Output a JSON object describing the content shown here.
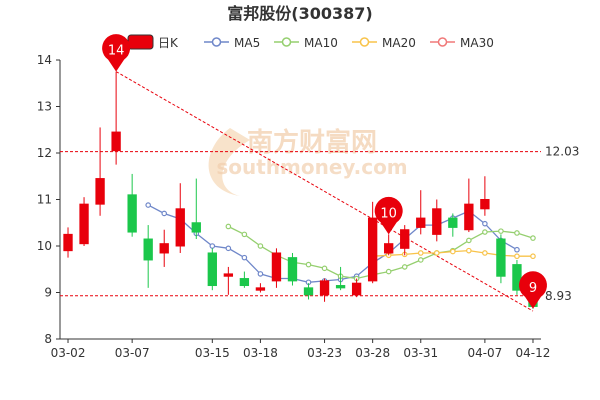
{
  "chart_data": {
    "type": "candlestick",
    "title": "富邦股份(300387)",
    "watermark": {
      "main": "南方财富网",
      "sub": "southmoney.com"
    },
    "legend": [
      {
        "name": "日K",
        "color": "#e8000b"
      },
      {
        "name": "MA5",
        "color": "#6f87c9"
      },
      {
        "name": "MA10",
        "color": "#95cf6f"
      },
      {
        "name": "MA20",
        "color": "#f8c34a"
      },
      {
        "name": "MA30",
        "color": "#f07878"
      }
    ],
    "colors": {
      "up": "#e8000b",
      "down": "#1bc74b",
      "ref_line": "#e8000b",
      "trend_line": "#e8000b",
      "pin": "#e8000b"
    },
    "ylim": [
      8,
      14
    ],
    "yticks": [
      8,
      9,
      10,
      11,
      12,
      13,
      14
    ],
    "xtick_labels": [
      {
        "index": 0,
        "label": "03-02"
      },
      {
        "index": 4,
        "label": "03-07"
      },
      {
        "index": 9,
        "label": "03-15"
      },
      {
        "index": 12,
        "label": "03-18"
      },
      {
        "index": 16,
        "label": "03-23"
      },
      {
        "index": 19,
        "label": "03-28"
      },
      {
        "index": 22,
        "label": "03-31"
      },
      {
        "index": 26,
        "label": "04-07"
      },
      {
        "index": 29,
        "label": "04-12"
      }
    ],
    "candles": [
      {
        "o": 9.9,
        "c": 10.25,
        "h": 10.4,
        "l": 9.75
      },
      {
        "o": 10.05,
        "c": 10.9,
        "h": 11.05,
        "l": 10.0
      },
      {
        "o": 10.9,
        "c": 11.45,
        "h": 12.55,
        "l": 10.65
      },
      {
        "o": 12.05,
        "c": 12.45,
        "h": 13.75,
        "l": 11.75
      },
      {
        "o": 11.1,
        "c": 10.3,
        "h": 11.55,
        "l": 10.2
      },
      {
        "o": 10.15,
        "c": 9.7,
        "h": 10.45,
        "l": 9.1
      },
      {
        "o": 9.85,
        "c": 10.05,
        "h": 10.35,
        "l": 9.55
      },
      {
        "o": 10.0,
        "c": 10.8,
        "h": 11.35,
        "l": 9.85
      },
      {
        "o": 10.5,
        "c": 10.3,
        "h": 11.45,
        "l": 10.15
      },
      {
        "o": 9.85,
        "c": 9.15,
        "h": 9.95,
        "l": 9.05
      },
      {
        "o": 9.35,
        "c": 9.4,
        "h": 9.55,
        "l": 8.95
      },
      {
        "o": 9.3,
        "c": 9.15,
        "h": 9.45,
        "l": 9.1
      },
      {
        "o": 9.05,
        "c": 9.1,
        "h": 9.2,
        "l": 9.0
      },
      {
        "o": 9.25,
        "c": 9.85,
        "h": 9.95,
        "l": 9.1
      },
      {
        "o": 9.75,
        "c": 9.25,
        "h": 9.85,
        "l": 9.15
      },
      {
        "o": 9.1,
        "c": 8.95,
        "h": 9.2,
        "l": 8.85
      },
      {
        "o": 8.95,
        "c": 9.25,
        "h": 9.3,
        "l": 8.8
      },
      {
        "o": 9.15,
        "c": 9.1,
        "h": 9.55,
        "l": 9.05
      },
      {
        "o": 8.95,
        "c": 9.2,
        "h": 9.3,
        "l": 8.9
      },
      {
        "o": 9.25,
        "c": 10.6,
        "h": 10.95,
        "l": 9.2
      },
      {
        "o": 9.85,
        "c": 10.05,
        "h": 10.25,
        "l": 9.8
      },
      {
        "o": 9.95,
        "c": 10.35,
        "h": 10.45,
        "l": 9.8
      },
      {
        "o": 10.4,
        "c": 10.6,
        "h": 11.2,
        "l": 10.25
      },
      {
        "o": 10.25,
        "c": 10.8,
        "h": 11.0,
        "l": 10.1
      },
      {
        "o": 10.6,
        "c": 10.4,
        "h": 10.7,
        "l": 10.2
      },
      {
        "o": 10.35,
        "c": 10.9,
        "h": 11.45,
        "l": 10.3
      },
      {
        "o": 10.8,
        "c": 11.0,
        "h": 11.5,
        "l": 10.65
      },
      {
        "o": 10.15,
        "c": 9.35,
        "h": 10.25,
        "l": 9.2
      },
      {
        "o": 9.6,
        "c": 9.05,
        "h": 9.7,
        "l": 8.95
      },
      {
        "o": 8.95,
        "c": 8.7,
        "h": 9.05,
        "l": 8.65
      }
    ],
    "series": [
      {
        "name": "MA5",
        "color": "#6f87c9",
        "start": 5,
        "values": [
          10.88,
          10.7,
          10.58,
          10.27,
          10.0,
          9.95,
          9.75,
          9.4,
          9.3,
          9.3,
          9.22,
          9.25,
          9.28,
          9.35,
          9.64,
          9.85,
          10.15,
          10.45,
          10.45,
          10.6,
          10.75,
          10.48,
          10.12,
          9.92
        ]
      },
      {
        "name": "MA10",
        "color": "#95cf6f",
        "start": 10,
        "values": [
          10.42,
          10.25,
          10.0,
          9.8,
          9.65,
          9.6,
          9.52,
          9.35,
          9.3,
          9.38,
          9.45,
          9.55,
          9.7,
          9.85,
          9.9,
          10.12,
          10.3,
          10.32,
          10.28,
          10.17
        ]
      },
      {
        "name": "MA20",
        "color": "#f8c34a",
        "start": 19,
        "values": [
          9.78,
          9.8,
          9.82,
          9.85,
          9.85,
          9.88,
          9.9,
          9.85,
          9.8,
          9.78,
          9.78
        ]
      },
      {
        "name": "MA30",
        "color": "#f07878",
        "start": 29,
        "values": []
      }
    ],
    "reference_line": {
      "value": 12.03,
      "label": "12.03"
    },
    "min_line": {
      "value": 8.93,
      "label": "8.93"
    },
    "pins": [
      {
        "index": 3,
        "value": 13.75,
        "label": "14"
      },
      {
        "index": 20,
        "value": 10.25,
        "label": "10"
      },
      {
        "index": 29,
        "value": 8.65,
        "label": "9"
      }
    ],
    "trend_line": {
      "from_index": 3,
      "from_value": 13.75,
      "to_index": 29,
      "to_value": 8.6
    }
  }
}
